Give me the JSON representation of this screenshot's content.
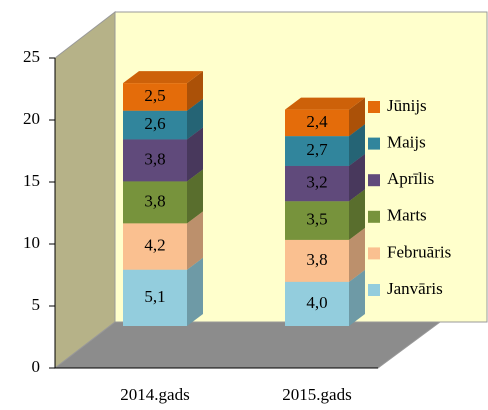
{
  "chart_data": {
    "type": "bar3d_stacked",
    "categories": [
      "2014.gads",
      "2015.gads"
    ],
    "series": [
      {
        "name": "Janvāris",
        "color": "#93cddd",
        "values": [
          5.1,
          4.0
        ],
        "value_labels": [
          "5,1",
          "4,0"
        ]
      },
      {
        "name": "Februāris",
        "color": "#fac090",
        "values": [
          4.2,
          3.8
        ],
        "value_labels": [
          "4,2",
          "3,8"
        ]
      },
      {
        "name": "Marts",
        "color": "#77933c",
        "values": [
          3.8,
          3.5
        ],
        "value_labels": [
          "3,8",
          "3,5"
        ]
      },
      {
        "name": "Aprīlis",
        "color": "#604a7b",
        "values": [
          3.8,
          3.2
        ],
        "value_labels": [
          "3,8",
          "3,2"
        ]
      },
      {
        "name": "Maijs",
        "color": "#31859c",
        "values": [
          2.6,
          2.7
        ],
        "value_labels": [
          "2,6",
          "2,7"
        ]
      },
      {
        "name": "Jūnijs",
        "color": "#e46c0a",
        "values": [
          2.5,
          2.4
        ],
        "value_labels": [
          "2,5",
          "2,4"
        ]
      }
    ],
    "ylim": [
      0,
      25
    ],
    "yticks": [
      0,
      5,
      10,
      15,
      20,
      25
    ],
    "legend": "right"
  }
}
